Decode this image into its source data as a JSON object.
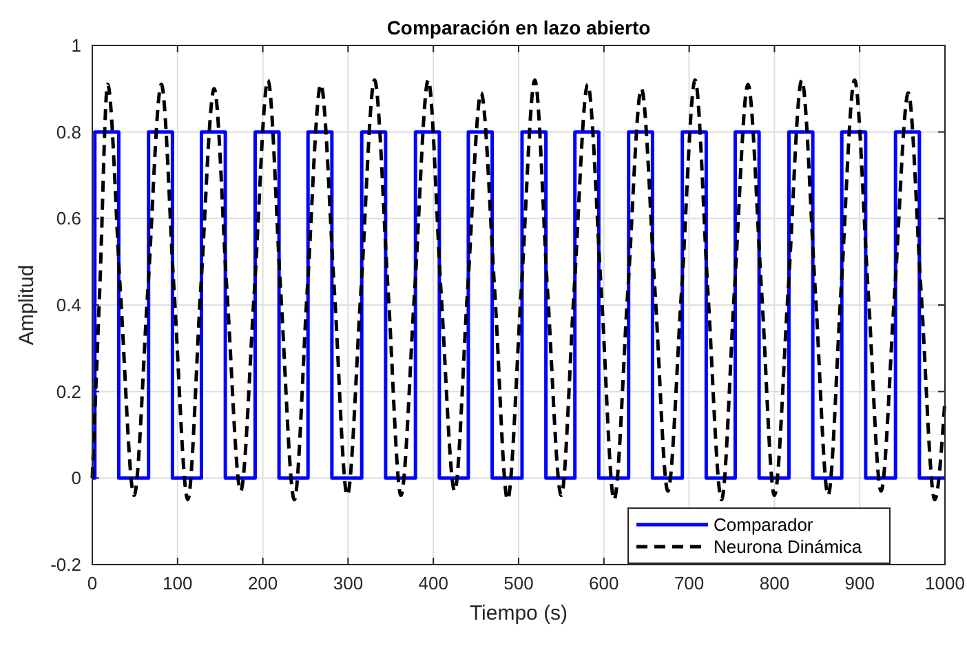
{
  "chart_data": {
    "type": "line",
    "title": "Comparación en lazo abierto",
    "xlabel": "Tiempo (s)",
    "ylabel": "Amplitud",
    "xlim": [
      0,
      1000
    ],
    "xticks": [
      0,
      100,
      200,
      300,
      400,
      500,
      600,
      700,
      800,
      900,
      1000
    ],
    "ylim": [
      -0.2,
      1
    ],
    "yticks": [
      -0.2,
      0,
      0.2,
      0.4,
      0.6,
      0.8,
      1
    ],
    "grid": true,
    "legend": "bottom right",
    "series": [
      {
        "name": "Comparador",
        "type": "step",
        "color": "#0000ff",
        "line_style": "solid",
        "x": [
          0,
          3,
          31,
          66,
          94,
          128,
          156,
          191,
          219,
          253,
          281,
          316,
          344,
          379,
          407,
          441,
          469,
          504,
          532,
          566,
          594,
          629,
          657,
          692,
          720,
          754,
          782,
          817,
          845,
          879,
          907,
          942,
          970,
          1000
        ],
        "values": [
          0,
          0.8,
          0,
          0.8,
          0,
          0.8,
          0,
          0.8,
          0,
          0.8,
          0,
          0.8,
          0,
          0.8,
          0,
          0.8,
          0,
          0.8,
          0,
          0.8,
          0,
          0.8,
          0,
          0.8,
          0,
          0.8,
          0,
          0.8,
          0,
          0.8,
          0,
          0.8,
          0,
          0
        ]
      },
      {
        "name": "Neurona Dinámica",
        "color": "#000000",
        "line_style": "dashed",
        "x": [
          0,
          9,
          18,
          33,
          49,
          65,
          81,
          96,
          112,
          127,
          143,
          158,
          174,
          190,
          206,
          221,
          237,
          252,
          268,
          284,
          299,
          315,
          331,
          347,
          362,
          378,
          394,
          409,
          425,
          440,
          456,
          472,
          487,
          503,
          519,
          534,
          550,
          565,
          581,
          597,
          612,
          628,
          644,
          660,
          675,
          691,
          707,
          722,
          738,
          753,
          769,
          785,
          800,
          816,
          832,
          848,
          863,
          878,
          894,
          910,
          925,
          941,
          957,
          972,
          988,
          1000
        ],
        "values": [
          0,
          0.45,
          0.91,
          0.43,
          -0.04,
          0.43,
          0.91,
          0.43,
          -0.05,
          0.43,
          0.9,
          0.43,
          -0.03,
          0.43,
          0.92,
          0.43,
          -0.05,
          0.43,
          0.91,
          0.43,
          -0.04,
          0.43,
          0.92,
          0.43,
          -0.04,
          0.43,
          0.92,
          0.43,
          -0.03,
          0.43,
          0.89,
          0.43,
          -0.05,
          0.43,
          0.92,
          0.43,
          -0.04,
          0.43,
          0.91,
          0.43,
          -0.05,
          0.43,
          0.9,
          0.43,
          -0.03,
          0.43,
          0.92,
          0.43,
          -0.05,
          0.43,
          0.91,
          0.43,
          -0.04,
          0.43,
          0.92,
          0.43,
          -0.04,
          0.43,
          0.92,
          0.43,
          -0.03,
          0.43,
          0.89,
          0.43,
          -0.05,
          0.18
        ]
      }
    ]
  }
}
